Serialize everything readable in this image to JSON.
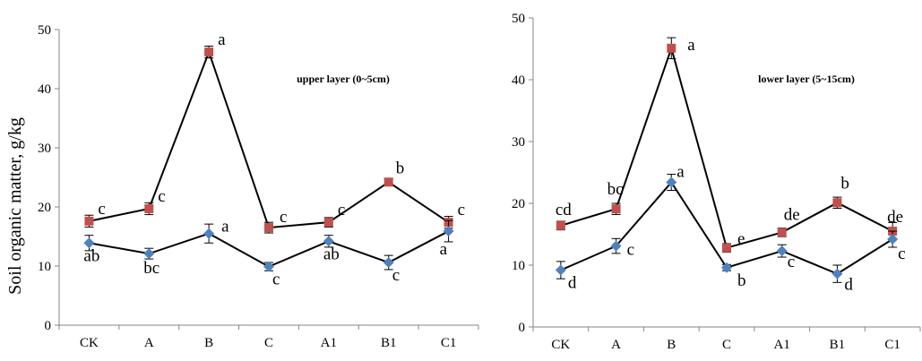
{
  "shared_ylabel": "Soil organic matter,  g/kg",
  "chart_data": [
    {
      "type": "line",
      "title": "upper layer (0~5cm)",
      "categories": [
        "CK",
        "A",
        "B",
        "C",
        "A1",
        "B1",
        "C1"
      ],
      "ylim": [
        0,
        50
      ],
      "yticks": [
        "0",
        "10",
        "20",
        "30",
        "40",
        "50"
      ],
      "grid": false,
      "series": [
        {
          "marker": "square",
          "color": "#c0504d",
          "values": [
            17.6,
            19.7,
            46.2,
            16.5,
            17.4,
            24.2,
            17.4
          ],
          "errors": [
            1.0,
            1.0,
            1.0,
            0.9,
            0.8,
            0.6,
            1.0
          ],
          "letters": [
            "c",
            "c",
            "a",
            "c",
            "c",
            "b",
            "c"
          ]
        },
        {
          "marker": "diamond",
          "color": "#4f81bd",
          "values": [
            13.9,
            12.1,
            15.5,
            9.9,
            14.2,
            10.6,
            15.9
          ],
          "errors": [
            1.3,
            0.9,
            1.6,
            0.7,
            1.0,
            1.2,
            1.8
          ],
          "letters": [
            "ab",
            "bc",
            "a",
            "c",
            "ab",
            "c",
            "a"
          ]
        }
      ]
    },
    {
      "type": "line",
      "title": "lower layer (5~15cm)",
      "categories": [
        "CK",
        "A",
        "B",
        "C",
        "A1",
        "B1",
        "C1"
      ],
      "ylim": [
        0,
        50
      ],
      "yticks": [
        "0",
        "10",
        "20",
        "30",
        "40",
        "50"
      ],
      "grid": false,
      "series": [
        {
          "marker": "square",
          "color": "#c0504d",
          "values": [
            16.4,
            19.1,
            45.1,
            12.8,
            15.3,
            20.1,
            15.5
          ],
          "errors": [
            0.7,
            0.9,
            1.7,
            0.7,
            0.7,
            0.9,
            1.4
          ],
          "letters": [
            "cd",
            "bc",
            "a",
            "e",
            "de",
            "b",
            "de"
          ]
        },
        {
          "marker": "diamond",
          "color": "#4f81bd",
          "values": [
            9.2,
            13.1,
            23.4,
            9.6,
            12.3,
            8.6,
            14.2
          ],
          "errors": [
            1.4,
            1.2,
            1.3,
            0.5,
            1.0,
            1.4,
            1.3
          ],
          "letters": [
            "d",
            "c",
            "a",
            "b",
            "c",
            "d",
            "c"
          ]
        }
      ]
    }
  ]
}
